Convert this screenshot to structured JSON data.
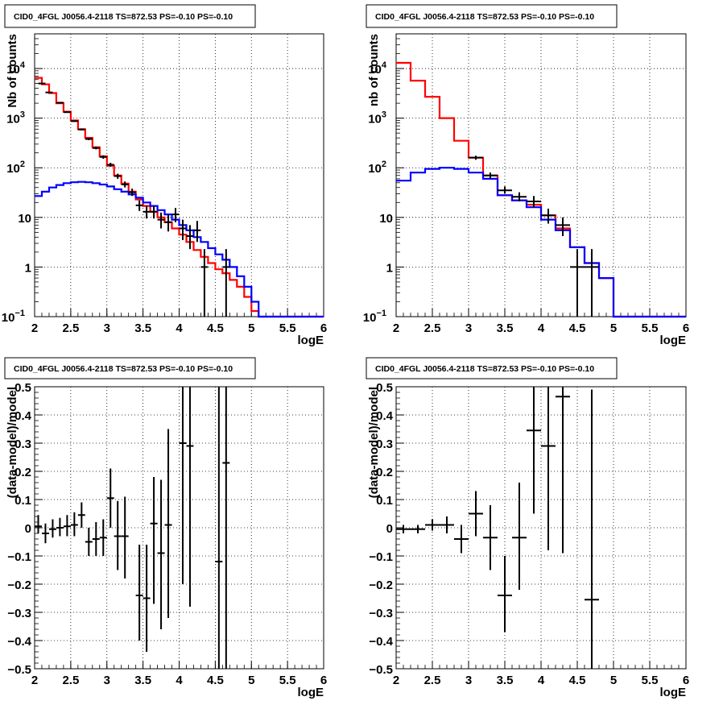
{
  "colors": {
    "data": "#000000",
    "total_model": "#ff0000",
    "bkg_model": "#0000ff",
    "grid": "#000000"
  },
  "chart_data": [
    {
      "type": "line",
      "title": "CID0_4FGL J0056.4-2118 TS=872.53 PS=-0.10 PS=-0.10",
      "xlabel": "logE",
      "ylabel": "Nb of counts",
      "xlim": [
        2,
        6
      ],
      "ylim": [
        0.1,
        50000
      ],
      "yscale": "log",
      "grid": true,
      "xticks": [
        "2",
        "2.5",
        "3",
        "3.5",
        "4",
        "4.5",
        "5",
        "5.5",
        "6"
      ],
      "yticks": [
        {
          "v": 0.1,
          "t": "10",
          "e": "−1"
        },
        {
          "v": 1,
          "t": "1"
        },
        {
          "v": 10,
          "t": "10"
        },
        {
          "v": 100,
          "t": "10",
          "e": "2"
        },
        {
          "v": 1000,
          "t": "10",
          "e": "3"
        },
        {
          "v": 10000,
          "t": "10",
          "e": "4"
        }
      ],
      "bin_edges": [
        2.0,
        2.1,
        2.2,
        2.3,
        2.4,
        2.5,
        2.6,
        2.7,
        2.8,
        2.9,
        3.0,
        3.1,
        3.2,
        3.3,
        3.4,
        3.5,
        3.6,
        3.7,
        3.8,
        3.9,
        4.0,
        4.1,
        4.2,
        4.3,
        4.4,
        4.5,
        4.6,
        4.7,
        4.8,
        4.9,
        5.0,
        5.1,
        5.2,
        5.3,
        5.4,
        5.5,
        5.6,
        5.7,
        5.8,
        5.9,
        6.0
      ],
      "series": [
        {
          "role": "total_model",
          "values": [
            6500,
            4800,
            3200,
            2000,
            1350,
            900,
            600,
            400,
            260,
            170,
            110,
            70,
            48,
            33,
            23,
            17,
            13,
            10,
            8,
            6,
            4.5,
            3.2,
            2.2,
            1.6,
            1.2,
            0.9,
            0.75,
            0.55,
            0.4,
            0.25,
            0.13,
            0.1,
            0.1,
            0.1,
            0.1,
            0.1,
            0.1,
            0.1,
            0.1,
            0.1
          ]
        },
        {
          "role": "bkg_model",
          "values": [
            27,
            33,
            40,
            45,
            49,
            51,
            52,
            51,
            49,
            46,
            42,
            37,
            33,
            29,
            25,
            20,
            17,
            14,
            11.5,
            9,
            7,
            5.5,
            4,
            3.2,
            2.4,
            1.8,
            1.4,
            1.0,
            0.65,
            0.4,
            0.2,
            0.1,
            0.1,
            0.1,
            0.1,
            0.1,
            0.1,
            0.1,
            0.1,
            0.1
          ]
        }
      ],
      "points": [
        {
          "x": 2.1,
          "y": 5000,
          "xerr": 0.05,
          "ylo": 4900,
          "yhi": 5100
        },
        {
          "x": 2.2,
          "y": 3300,
          "xerr": 0.05,
          "ylo": 3230,
          "yhi": 3370
        },
        {
          "x": 2.35,
          "y": 2050,
          "xerr": 0.05,
          "ylo": 2000,
          "yhi": 2100
        },
        {
          "x": 2.45,
          "y": 1320,
          "xerr": 0.05,
          "ylo": 1280,
          "yhi": 1360
        },
        {
          "x": 2.55,
          "y": 870,
          "xerr": 0.05,
          "ylo": 840,
          "yhi": 900
        },
        {
          "x": 2.65,
          "y": 590,
          "xerr": 0.05,
          "ylo": 565,
          "yhi": 615
        },
        {
          "x": 2.75,
          "y": 380,
          "xerr": 0.05,
          "ylo": 360,
          "yhi": 400
        },
        {
          "x": 2.85,
          "y": 250,
          "xerr": 0.05,
          "ylo": 235,
          "yhi": 265
        },
        {
          "x": 2.95,
          "y": 165,
          "xerr": 0.05,
          "ylo": 152,
          "yhi": 178
        },
        {
          "x": 3.05,
          "y": 115,
          "xerr": 0.05,
          "ylo": 105,
          "yhi": 126
        },
        {
          "x": 3.15,
          "y": 68,
          "xerr": 0.05,
          "ylo": 60,
          "yhi": 76
        },
        {
          "x": 3.25,
          "y": 46,
          "xerr": 0.05,
          "ylo": 40,
          "yhi": 53
        },
        {
          "x": 3.35,
          "y": 32,
          "xerr": 0.05,
          "ylo": 27,
          "yhi": 38
        },
        {
          "x": 3.45,
          "y": 17.5,
          "xerr": 0.05,
          "ylo": 13.5,
          "yhi": 22
        },
        {
          "x": 3.55,
          "y": 13,
          "xerr": 0.05,
          "ylo": 9.5,
          "yhi": 17
        },
        {
          "x": 3.65,
          "y": 13,
          "xerr": 0.05,
          "ylo": 9.5,
          "yhi": 17
        },
        {
          "x": 3.75,
          "y": 9,
          "xerr": 0.05,
          "ylo": 6,
          "yhi": 12.5
        },
        {
          "x": 3.85,
          "y": 8,
          "xerr": 0.05,
          "ylo": 5.2,
          "yhi": 11.5
        },
        {
          "x": 3.95,
          "y": 11.5,
          "xerr": 0.05,
          "ylo": 8,
          "yhi": 15.5
        },
        {
          "x": 4.05,
          "y": 6,
          "xerr": 0.05,
          "ylo": 3.5,
          "yhi": 9
        },
        {
          "x": 4.15,
          "y": 4.2,
          "xerr": 0.05,
          "ylo": 2.3,
          "yhi": 7
        },
        {
          "x": 4.25,
          "y": 5.5,
          "xerr": 0.05,
          "ylo": 3.2,
          "yhi": 8.5
        },
        {
          "x": 4.35,
          "y": 1,
          "xerr": 0.05,
          "ylo": 0.1,
          "yhi": 2.3
        },
        {
          "x": 4.65,
          "y": 1,
          "xerr": 0.05,
          "ylo": 0.1,
          "yhi": 2.3
        }
      ]
    },
    {
      "type": "line",
      "title": "CID0_4FGL J0056.4-2118 TS=872.53 PS=-0.10 PS=-0.10",
      "xlabel": "logE",
      "ylabel": "nb of counts",
      "xlim": [
        2,
        6
      ],
      "ylim": [
        0.1,
        50000
      ],
      "yscale": "log",
      "grid": true,
      "xticks": [
        "2",
        "2.5",
        "3",
        "3.5",
        "4",
        "4.5",
        "5",
        "5.5",
        "6"
      ],
      "yticks": [
        {
          "v": 0.1,
          "t": "10",
          "e": "−1"
        },
        {
          "v": 1,
          "t": "1"
        },
        {
          "v": 10,
          "t": "10"
        },
        {
          "v": 100,
          "t": "10",
          "e": "2"
        },
        {
          "v": 1000,
          "t": "10",
          "e": "3"
        },
        {
          "v": 10000,
          "t": "10",
          "e": "4"
        }
      ],
      "bin_edges": [
        2.0,
        2.2,
        2.4,
        2.6,
        2.8,
        3.0,
        3.2,
        3.4,
        3.6,
        3.8,
        4.0,
        4.2,
        4.4,
        4.6,
        4.8,
        5.0,
        5.2,
        5.4,
        5.6,
        5.8,
        6.0
      ],
      "series": [
        {
          "role": "total_model",
          "values": [
            13000,
            5700,
            2700,
            1000,
            350,
            160,
            70,
            28,
            22,
            18,
            11,
            6,
            2.5,
            1.2,
            0.6,
            0.1,
            0.1,
            0.1,
            0.1,
            0.1
          ]
        },
        {
          "role": "bkg_model",
          "values": [
            55,
            80,
            95,
            100,
            95,
            80,
            60,
            28,
            22,
            16,
            9,
            5.5,
            2.5,
            1.2,
            0.6,
            0.1,
            0.1,
            0.1,
            0.1,
            0.1
          ]
        }
      ],
      "points": [
        {
          "x": 3.1,
          "y": 160,
          "xerr": 0.1,
          "ylo": 145,
          "yhi": 175
        },
        {
          "x": 3.3,
          "y": 70,
          "xerr": 0.1,
          "ylo": 60,
          "yhi": 80
        },
        {
          "x": 3.5,
          "y": 35,
          "xerr": 0.1,
          "ylo": 30,
          "yhi": 42
        },
        {
          "x": 3.7,
          "y": 26,
          "xerr": 0.1,
          "ylo": 21,
          "yhi": 32
        },
        {
          "x": 3.9,
          "y": 21,
          "xerr": 0.1,
          "ylo": 16,
          "yhi": 27
        },
        {
          "x": 4.1,
          "y": 11,
          "xerr": 0.1,
          "ylo": 7.5,
          "yhi": 15
        },
        {
          "x": 4.3,
          "y": 7,
          "xerr": 0.1,
          "ylo": 4.2,
          "yhi": 10
        },
        {
          "x": 4.5,
          "y": 1,
          "xerr": 0.1,
          "ylo": 0.1,
          "yhi": 2.3
        },
        {
          "x": 4.7,
          "y": 1,
          "xerr": 0.1,
          "ylo": 0.1,
          "yhi": 2.3
        }
      ]
    },
    {
      "type": "scatter",
      "title": "CID0_4FGL J0056.4-2118 TS=872.53 PS=-0.10 PS=-0.10",
      "xlabel": "logE",
      "ylabel": "(data-model)/model",
      "xlim": [
        2,
        6
      ],
      "ylim": [
        -0.5,
        0.5
      ],
      "grid": true,
      "xticks": [
        "2",
        "2.5",
        "3",
        "3.5",
        "4",
        "4.5",
        "5",
        "5.5",
        "6"
      ],
      "yticks": [
        {
          "v": -0.5,
          "t": "−0.5"
        },
        {
          "v": -0.4,
          "t": "−0.4"
        },
        {
          "v": -0.3,
          "t": "−0.3"
        },
        {
          "v": -0.2,
          "t": "−0.2"
        },
        {
          "v": -0.1,
          "t": "−0.1"
        },
        {
          "v": 0,
          "t": "0"
        },
        {
          "v": 0.1,
          "t": "0.1"
        },
        {
          "v": 0.2,
          "t": "0.2"
        },
        {
          "v": 0.3,
          "t": "0.3"
        },
        {
          "v": 0.4,
          "t": "0.4"
        },
        {
          "v": 0.5,
          "t": "0.5"
        }
      ],
      "points": [
        {
          "x": 2.05,
          "y": 0.005,
          "xerr": 0.05,
          "ylo": -0.02,
          "yhi": 0.045
        },
        {
          "x": 2.15,
          "y": -0.02,
          "xerr": 0.05,
          "ylo": -0.055,
          "yhi": 0.015
        },
        {
          "x": 2.25,
          "y": -0.005,
          "xerr": 0.05,
          "ylo": -0.035,
          "yhi": 0.03
        },
        {
          "x": 2.35,
          "y": 0.0,
          "xerr": 0.05,
          "ylo": -0.03,
          "yhi": 0.035
        },
        {
          "x": 2.45,
          "y": 0.005,
          "xerr": 0.05,
          "ylo": -0.03,
          "yhi": 0.045
        },
        {
          "x": 2.55,
          "y": 0.01,
          "xerr": 0.05,
          "ylo": -0.03,
          "yhi": 0.055
        },
        {
          "x": 2.65,
          "y": 0.045,
          "xerr": 0.05,
          "ylo": 0.0,
          "yhi": 0.09
        },
        {
          "x": 2.75,
          "y": -0.05,
          "xerr": 0.05,
          "ylo": -0.1,
          "yhi": 0.0
        },
        {
          "x": 2.85,
          "y": -0.04,
          "xerr": 0.05,
          "ylo": -0.1,
          "yhi": 0.02
        },
        {
          "x": 2.95,
          "y": -0.035,
          "xerr": 0.05,
          "ylo": -0.1,
          "yhi": 0.03
        },
        {
          "x": 3.05,
          "y": 0.105,
          "xerr": 0.05,
          "ylo": 0.0,
          "yhi": 0.21
        },
        {
          "x": 3.15,
          "y": -0.03,
          "xerr": 0.05,
          "ylo": -0.15,
          "yhi": 0.095
        },
        {
          "x": 3.25,
          "y": -0.03,
          "xerr": 0.05,
          "ylo": -0.18,
          "yhi": 0.11
        },
        {
          "x": 3.45,
          "y": -0.24,
          "xerr": 0.05,
          "ylo": -0.4,
          "yhi": -0.06
        },
        {
          "x": 3.55,
          "y": -0.25,
          "xerr": 0.05,
          "ylo": -0.44,
          "yhi": -0.06
        },
        {
          "x": 3.65,
          "y": 0.015,
          "xerr": 0.05,
          "ylo": -0.27,
          "yhi": 0.18
        },
        {
          "x": 3.75,
          "y": -0.09,
          "xerr": 0.05,
          "ylo": -0.36,
          "yhi": 0.17
        },
        {
          "x": 3.85,
          "y": 0.01,
          "xerr": 0.05,
          "ylo": -0.32,
          "yhi": 0.35
        },
        {
          "x": 4.05,
          "y": 0.3,
          "xerr": 0.05,
          "ylo": -0.2,
          "yhi": 0.5
        },
        {
          "x": 4.15,
          "y": 0.29,
          "xerr": 0.05,
          "ylo": -0.28,
          "yhi": 0.5
        },
        {
          "x": 4.55,
          "y": -0.12,
          "xerr": 0.05,
          "ylo": -0.5,
          "yhi": 0.5
        },
        {
          "x": 4.65,
          "y": 0.23,
          "xerr": 0.05,
          "ylo": -0.5,
          "yhi": 0.5
        }
      ]
    },
    {
      "type": "scatter",
      "title": "CID0_4FGL J0056.4-2118 TS=872.53 PS=-0.10 PS=-0.10",
      "xlabel": "logE",
      "ylabel": "(data-model)/model",
      "xlim": [
        2,
        6
      ],
      "ylim": [
        -0.5,
        0.5
      ],
      "grid": true,
      "xticks": [
        "2",
        "2.5",
        "3",
        "3.5",
        "4",
        "4.5",
        "5",
        "5.5",
        "6"
      ],
      "yticks": [
        {
          "v": -0.5,
          "t": "−0.5"
        },
        {
          "v": -0.4,
          "t": "−0.4"
        },
        {
          "v": -0.3,
          "t": "−0.3"
        },
        {
          "v": -0.2,
          "t": "−0.2"
        },
        {
          "v": -0.1,
          "t": "−0.1"
        },
        {
          "v": 0,
          "t": "0"
        },
        {
          "v": 0.1,
          "t": "0.1"
        },
        {
          "v": 0.2,
          "t": "0.2"
        },
        {
          "v": 0.3,
          "t": "0.3"
        },
        {
          "v": 0.4,
          "t": "0.4"
        },
        {
          "v": 0.5,
          "t": "0.5"
        }
      ],
      "points": [
        {
          "x": 2.1,
          "y": -0.005,
          "xerr": 0.1,
          "ylo": -0.02,
          "yhi": 0.01
        },
        {
          "x": 2.3,
          "y": -0.005,
          "xerr": 0.1,
          "ylo": -0.02,
          "yhi": 0.01
        },
        {
          "x": 2.5,
          "y": 0.01,
          "xerr": 0.1,
          "ylo": -0.01,
          "yhi": 0.03
        },
        {
          "x": 2.7,
          "y": 0.01,
          "xerr": 0.1,
          "ylo": -0.02,
          "yhi": 0.04
        },
        {
          "x": 2.9,
          "y": -0.04,
          "xerr": 0.1,
          "ylo": -0.09,
          "yhi": 0.01
        },
        {
          "x": 3.1,
          "y": 0.05,
          "xerr": 0.1,
          "ylo": -0.03,
          "yhi": 0.13
        },
        {
          "x": 3.3,
          "y": -0.035,
          "xerr": 0.1,
          "ylo": -0.15,
          "yhi": 0.08
        },
        {
          "x": 3.5,
          "y": -0.24,
          "xerr": 0.1,
          "ylo": -0.37,
          "yhi": -0.1
        },
        {
          "x": 3.7,
          "y": -0.035,
          "xerr": 0.1,
          "ylo": -0.22,
          "yhi": 0.16
        },
        {
          "x": 3.9,
          "y": 0.345,
          "xerr": 0.1,
          "ylo": 0.05,
          "yhi": 0.5
        },
        {
          "x": 4.1,
          "y": 0.29,
          "xerr": 0.1,
          "ylo": -0.08,
          "yhi": 0.5
        },
        {
          "x": 4.3,
          "y": 0.465,
          "xerr": 0.1,
          "ylo": -0.09,
          "yhi": 0.5
        },
        {
          "x": 4.7,
          "y": -0.255,
          "xerr": 0.1,
          "ylo": -0.5,
          "yhi": 0.49
        }
      ]
    }
  ]
}
